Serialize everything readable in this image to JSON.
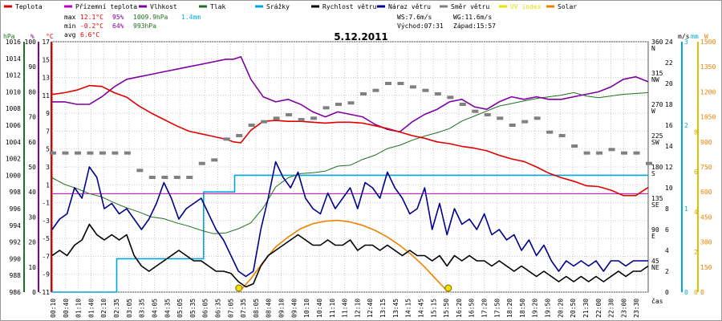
{
  "chart_data": {
    "type": "line",
    "title": "5.12.2011",
    "legend": [
      {
        "label": "Teplota",
        "color": "#e00000"
      },
      {
        "label": "Přízemní teplota",
        "color": "#c000c0"
      },
      {
        "label": "Vlhkost",
        "color": "#8000a0"
      },
      {
        "label": "Tlak",
        "color": "#207020"
      },
      {
        "label": "Srážky",
        "color": "#00a8d8"
      },
      {
        "label": "Rychlost větru",
        "color": "#000000"
      },
      {
        "label": "Náraz větru",
        "color": "#00008b"
      },
      {
        "label": "Směr větru",
        "color": "#808080"
      },
      {
        "label": "UV index",
        "color": "#f0e000"
      },
      {
        "label": "Solar",
        "color": "#f08000"
      }
    ],
    "stats": {
      "max_label": "max",
      "max_temp": "12.1°C",
      "max_hum": "95%",
      "max_press": "1009.9hPa",
      "max_rain": "1.4mm",
      "min_label": "min",
      "min_temp": "-0.2°C",
      "min_hum": "64%",
      "min_press": "993hPa",
      "avg_label": "avg",
      "avg_temp": "6.6°C",
      "ws": "WS:7.6m/s",
      "wg": "WG:11.6m/s",
      "sunrise": "Východ:07:31",
      "sunset": "Západ:15:57"
    },
    "axes": {
      "hpa": {
        "unit": "hPa",
        "ticks": [
          "1016",
          "1014",
          "1012",
          "1010",
          "1008",
          "1006",
          "1004",
          "1002",
          "1000",
          "998",
          "996",
          "994",
          "992",
          "990",
          "988",
          "986"
        ]
      },
      "pct": {
        "unit": "%",
        "ticks": [
          "100",
          "90",
          "80",
          "70",
          "60",
          "50",
          "40",
          "30",
          "20",
          "10",
          "0"
        ]
      },
      "degc": {
        "unit": "°C",
        "ticks": [
          "17",
          "15",
          "13",
          "11",
          "9",
          "7",
          "5",
          "3",
          "1",
          "-1",
          "-3",
          "-5",
          "-7",
          "-9",
          "-11"
        ]
      },
      "dir": {
        "unit": "",
        "ticks": [
          "360",
          "N",
          "315",
          "NW",
          "270",
          "W",
          "225",
          "SW",
          "180",
          "S",
          "135",
          "SE",
          "90",
          "E",
          "45",
          "NE"
        ]
      },
      "ms": {
        "unit": "m/s",
        "ticks": [
          "24",
          "22",
          "20",
          "18",
          "16",
          "14",
          "12",
          "10",
          "8",
          "6",
          "4",
          "2",
          "0"
        ]
      },
      "mm": {
        "unit": "mm",
        "ticks": [
          "3",
          "2",
          "1",
          "0"
        ]
      },
      "w": {
        "unit": "W",
        "ticks": [
          "1500",
          "1350",
          "1200",
          "1050",
          "900",
          "750",
          "600",
          "450",
          "300",
          "150",
          "0"
        ]
      },
      "uv": {
        "ticks": [
          "8",
          "6",
          "4",
          "2",
          "0"
        ]
      },
      "x_label": "čas",
      "time_ticks": [
        "00:10",
        "00:40",
        "01:10",
        "01:40",
        "02:10",
        "02:35",
        "03:05",
        "03:35",
        "04:05",
        "04:35",
        "05:05",
        "05:35",
        "06:05",
        "06:35",
        "07:05",
        "07:35",
        "08:05",
        "08:40",
        "09:10",
        "09:40",
        "10:10",
        "10:40",
        "11:10",
        "11:40",
        "12:10",
        "12:40",
        "13:15",
        "13:45",
        "14:15",
        "14:45",
        "15:15",
        "15:50",
        "16:20",
        "16:50",
        "17:20",
        "17:50",
        "18:20",
        "18:50",
        "19:20",
        "19:50",
        "20:20",
        "20:50",
        "21:30",
        "22:00",
        "22:30",
        "23:00",
        "23:30"
      ]
    },
    "ranges": {
      "temp": [
        -11,
        17
      ],
      "hum": [
        0,
        100
      ],
      "press": [
        986,
        1016
      ],
      "wind": [
        0,
        24
      ],
      "rain": [
        0,
        3
      ],
      "solar": [
        0,
        1500
      ],
      "dir": [
        0,
        360
      ],
      "hours": [
        0,
        24
      ]
    },
    "series": [
      {
        "name": "Teplota",
        "color": "#e00000",
        "x": [
          0,
          0.5,
          1,
          1.5,
          2,
          2.5,
          3,
          3.5,
          4,
          4.5,
          5,
          5.5,
          6,
          6.5,
          7,
          7.3,
          7.6,
          8,
          8.5,
          9,
          9.5,
          10,
          10.5,
          11,
          11.5,
          12,
          12.5,
          13,
          13.5,
          14,
          14.5,
          15,
          15.5,
          16,
          16.5,
          17,
          17.5,
          18,
          18.5,
          19,
          19.5,
          20,
          20.5,
          21,
          21.5,
          22,
          22.5,
          23,
          23.5,
          24
        ],
        "values": [
          11.1,
          11.3,
          11.6,
          12.1,
          12.0,
          11.3,
          10.8,
          9.8,
          9.0,
          8.3,
          7.6,
          7.0,
          6.7,
          6.4,
          6.1,
          5.8,
          5.7,
          7.1,
          8.1,
          8.2,
          8.1,
          8.1,
          8.0,
          7.9,
          8.0,
          8.0,
          7.9,
          7.6,
          7.3,
          6.9,
          6.5,
          6.2,
          5.8,
          5.6,
          5.3,
          5.1,
          4.8,
          4.3,
          3.9,
          3.6,
          3.0,
          2.3,
          1.8,
          1.4,
          0.9,
          0.8,
          0.4,
          -0.2,
          -0.2,
          0.7
        ]
      },
      {
        "name": "Vlhkost",
        "color": "#8000a0",
        "x": [
          0,
          0.5,
          1,
          1.5,
          2,
          2.5,
          3,
          3.5,
          4,
          4.5,
          5,
          5.5,
          6,
          6.5,
          7,
          7.3,
          7.6,
          8,
          8.5,
          9,
          9.5,
          10,
          10.5,
          11,
          11.5,
          12,
          12.5,
          13,
          13.5,
          14,
          14.5,
          15,
          15.5,
          16,
          16.5,
          17,
          17.5,
          18,
          18.5,
          19,
          19.5,
          20,
          20.5,
          21,
          21.5,
          22,
          22.5,
          23,
          23.5,
          24
        ],
        "values": [
          76,
          76,
          75,
          75,
          78,
          82,
          85,
          86,
          87,
          88,
          89,
          90,
          91,
          92,
          93,
          93,
          94,
          85,
          78,
          76,
          77,
          75,
          72,
          70,
          72,
          71,
          70,
          67,
          65,
          64,
          68,
          71,
          73,
          76,
          77,
          74,
          73,
          76,
          78,
          77,
          78,
          77,
          77,
          78,
          79,
          80,
          82,
          85,
          86,
          84
        ]
      },
      {
        "name": "Tlak",
        "color": "#207020",
        "x": [
          0,
          0.5,
          1,
          1.5,
          2,
          2.5,
          3,
          3.5,
          4,
          4.5,
          5,
          5.5,
          6,
          6.5,
          7,
          7.5,
          8,
          8.5,
          9,
          9.5,
          10,
          10.5,
          11,
          11.5,
          12,
          12.5,
          13,
          13.5,
          14,
          14.5,
          15,
          15.5,
          16,
          16.5,
          17,
          17.5,
          18,
          18.5,
          19,
          19.5,
          20,
          20.5,
          21,
          21.5,
          22,
          22.5,
          23,
          23.5,
          24
        ],
        "values": [
          999.7,
          998.9,
          998.4,
          997.8,
          997.4,
          996.7,
          996.1,
          995.6,
          995.0,
          994.8,
          994.3,
          993.9,
          993.4,
          993.0,
          993.1,
          993.6,
          994.3,
          996.1,
          998.6,
          999.7,
          1000.2,
          1000.3,
          1000.5,
          1001.1,
          1001.2,
          1001.9,
          1002.4,
          1003.2,
          1003.6,
          1004.2,
          1004.7,
          1005.1,
          1005.6,
          1006.5,
          1007.1,
          1007.7,
          1008.3,
          1008.6,
          1008.9,
          1009.2,
          1009.4,
          1009.6,
          1009.9,
          1009.5,
          1009.3,
          1009.5,
          1009.7,
          1009.8,
          1009.9
        ]
      },
      {
        "name": "Přízemní teplota",
        "color": "#c000c0",
        "x": [
          0,
          24
        ],
        "values": [
          0,
          0
        ]
      },
      {
        "name": "Srážky",
        "color": "#00a8d8",
        "x": [
          0,
          2.3,
          2.6,
          3,
          6,
          6.1,
          6.5,
          6.9,
          7.3,
          7.35,
          8,
          24
        ],
        "values": [
          0,
          0,
          0.4,
          0.4,
          0.4,
          1.2,
          1.2,
          1.2,
          1.2,
          1.4,
          1.4,
          1.4
        ]
      },
      {
        "name": "Rychlost větru",
        "color": "#000000",
        "x": [
          0,
          0.3,
          0.6,
          0.9,
          1.2,
          1.5,
          1.8,
          2.1,
          2.4,
          2.7,
          3,
          3.3,
          3.6,
          3.9,
          4.2,
          4.5,
          4.8,
          5.1,
          5.4,
          5.7,
          6,
          6.3,
          6.6,
          6.9,
          7.2,
          7.5,
          7.8,
          8.1,
          8.4,
          8.7,
          9,
          9.3,
          9.6,
          9.9,
          10.2,
          10.5,
          10.8,
          11.1,
          11.4,
          11.7,
          12,
          12.3,
          12.6,
          12.9,
          13.2,
          13.5,
          13.8,
          14.1,
          14.4,
          14.7,
          15,
          15.3,
          15.6,
          15.9,
          16.2,
          16.5,
          16.8,
          17.1,
          17.4,
          17.7,
          18,
          18.3,
          18.6,
          18.9,
          19.2,
          19.5,
          19.8,
          20.1,
          20.4,
          20.7,
          21,
          21.3,
          21.6,
          21.9,
          22.2,
          22.5,
          22.8,
          23.1,
          23.4,
          23.7,
          24
        ],
        "values": [
          3.5,
          4.0,
          3.5,
          4.5,
          5.0,
          6.5,
          5.5,
          5.0,
          5.5,
          5.0,
          5.5,
          3.5,
          2.5,
          2.0,
          2.5,
          3.0,
          3.5,
          4.0,
          3.5,
          3.0,
          3.0,
          2.5,
          2.0,
          2.0,
          1.8,
          1.0,
          0.5,
          0.8,
          2.5,
          3.5,
          4.0,
          4.5,
          5.0,
          5.5,
          5.0,
          4.5,
          4.5,
          5.0,
          4.5,
          4.5,
          5.0,
          4.0,
          4.5,
          4.5,
          4.0,
          4.5,
          4.0,
          3.5,
          4.0,
          3.5,
          3.5,
          3.0,
          3.5,
          2.5,
          3.5,
          3.0,
          3.5,
          3.0,
          3.0,
          2.5,
          3.0,
          2.5,
          2.0,
          2.5,
          2.0,
          1.5,
          2.0,
          1.5,
          1.0,
          1.5,
          1.0,
          1.5,
          1.0,
          1.5,
          1.0,
          1.5,
          2.0,
          1.5,
          2.0,
          2.0,
          2.5
        ]
      },
      {
        "name": "Náraz větru",
        "color": "#00008b",
        "x": [
          0,
          0.3,
          0.6,
          0.9,
          1.2,
          1.5,
          1.8,
          2.1,
          2.4,
          2.7,
          3,
          3.3,
          3.6,
          3.9,
          4.2,
          4.5,
          4.8,
          5.1,
          5.4,
          5.7,
          6,
          6.3,
          6.6,
          6.9,
          7.2,
          7.5,
          7.8,
          8.1,
          8.4,
          8.7,
          9,
          9.3,
          9.6,
          9.9,
          10.2,
          10.5,
          10.8,
          11.1,
          11.4,
          11.7,
          12,
          12.3,
          12.6,
          12.9,
          13.2,
          13.5,
          13.8,
          14.1,
          14.4,
          14.7,
          15,
          15.3,
          15.6,
          15.9,
          16.2,
          16.5,
          16.8,
          17.1,
          17.4,
          17.7,
          18,
          18.3,
          18.6,
          18.9,
          19.2,
          19.5,
          19.8,
          20.1,
          20.4,
          20.7,
          21,
          21.3,
          21.6,
          21.9,
          22.2,
          22.5,
          22.8,
          23.1,
          23.4,
          23.7,
          24
        ],
        "values": [
          6.0,
          7.0,
          7.5,
          10.0,
          9.0,
          12.0,
          11.0,
          8.0,
          8.5,
          7.5,
          8.0,
          7.0,
          6.0,
          7.0,
          8.5,
          10.5,
          9.0,
          7.0,
          8.0,
          8.5,
          9.0,
          7.5,
          6.0,
          5.0,
          3.5,
          2.0,
          1.5,
          2.0,
          6.0,
          9.0,
          12.5,
          11.0,
          10.0,
          11.5,
          9.0,
          8.0,
          7.5,
          9.5,
          8.0,
          9.0,
          10.0,
          8.0,
          10.5,
          10.0,
          9.0,
          11.5,
          10.0,
          9.0,
          7.5,
          8.0,
          10.0,
          6.0,
          8.5,
          5.5,
          8.0,
          6.5,
          7.0,
          6.0,
          7.5,
          5.5,
          6.0,
          5.0,
          5.5,
          4.0,
          5.0,
          3.5,
          4.5,
          3.0,
          2.0,
          3.0,
          2.5,
          3.0,
          2.5,
          3.0,
          2.0,
          3.0,
          3.0,
          2.5,
          3.0,
          3.0,
          3.0
        ]
      },
      {
        "name": "Směr větru",
        "color": "#808080",
        "x": [
          0,
          0.5,
          1,
          1.5,
          2,
          2.5,
          3,
          3.5,
          4,
          4.5,
          5,
          5.5,
          6,
          6.5,
          7,
          7.5,
          8,
          8.5,
          9,
          9.5,
          10,
          10.5,
          11,
          11.5,
          12,
          12.5,
          13,
          13.5,
          14,
          14.5,
          15,
          15.5,
          16,
          16.5,
          17,
          17.5,
          18,
          18.5,
          19,
          19.5,
          20,
          20.5,
          21,
          21.5,
          22,
          22.5,
          23,
          23.5,
          24
        ],
        "values": [
          200,
          200,
          200,
          200,
          200,
          200,
          200,
          175,
          165,
          165,
          165,
          165,
          185,
          190,
          220,
          225,
          240,
          245,
          250,
          255,
          248,
          250,
          265,
          270,
          272,
          285,
          290,
          300,
          300,
          295,
          290,
          285,
          280,
          270,
          260,
          255,
          250,
          240,
          245,
          250,
          230,
          225,
          210,
          200,
          200,
          205,
          200,
          200,
          185
        ]
      },
      {
        "name": "Solar",
        "color": "#f08000",
        "x": [
          7.52,
          8,
          8.5,
          9,
          9.5,
          10,
          10.5,
          11,
          11.5,
          12,
          12.5,
          13,
          13.5,
          14,
          14.5,
          15,
          15.5,
          15.95
        ],
        "values": [
          0,
          80,
          180,
          270,
          330,
          380,
          410,
          425,
          430,
          420,
          400,
          370,
          330,
          280,
          220,
          150,
          70,
          0
        ]
      }
    ],
    "sun_markers": [
      "Východ:07:31",
      "Západ:15:57"
    ]
  }
}
